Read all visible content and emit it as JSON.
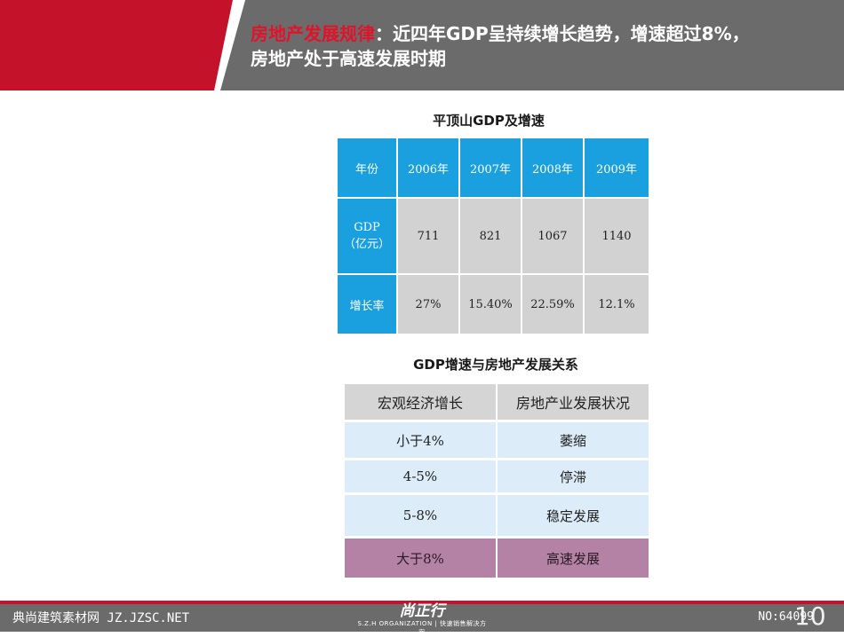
{
  "header": {
    "title_accent": "房地产发展规律",
    "title_rest": "：近四年GDP呈持续增长趋势，增速超过8%，",
    "title_line2": "房地产处于高速发展时期"
  },
  "gdp_table": {
    "caption": "平顶山GDP及增速",
    "headers": [
      "年份",
      "2006年",
      "2007年",
      "2008年",
      "2009年"
    ],
    "gdp_label": "GDP（亿元）",
    "gdp_label_1": "GDP",
    "gdp_label_2": "（亿元）",
    "gdp_values": [
      "711",
      "821",
      "1067",
      "1140"
    ],
    "growth_label": "增长率",
    "growth_values": [
      "27%",
      "15.40%",
      "22.59%",
      "12.1%"
    ]
  },
  "relation_table": {
    "caption": "GDP增速与房地产发展关系",
    "headers": [
      "宏观经济增长",
      "房地产业发展状况"
    ],
    "rows": [
      [
        "小于4%",
        "萎缩"
      ],
      [
        "4-5%",
        "停滞"
      ],
      [
        "5-8%",
        "稳定发展"
      ],
      [
        "大于8%",
        "高速发展"
      ]
    ]
  },
  "footer": {
    "left_text": "典尚建筑素材网 JZ.JZSC.NET",
    "right_text": "NO:64099",
    "page_number": "10",
    "logo_mark": "尚正行",
    "logo_sub": "S.Z.H ORGANIZATION | 快速销售解决方案"
  },
  "colors": {
    "brand_red": "#c5122b",
    "header_gray": "#6b6b6b",
    "table_blue": "#1aa0de",
    "table_gray": "#d2d2d2",
    "row_light_blue": "#dcecf8",
    "highlight_pink": "#b482a4"
  }
}
